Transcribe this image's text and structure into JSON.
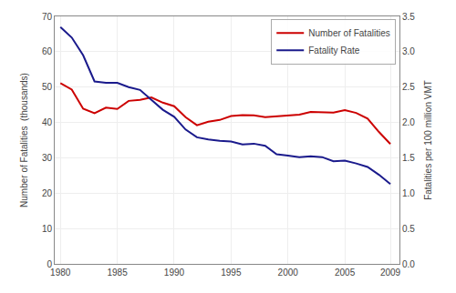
{
  "chart_data": {
    "type": "line",
    "x": [
      1980,
      1981,
      1982,
      1983,
      1984,
      1985,
      1986,
      1987,
      1988,
      1989,
      1990,
      1991,
      1992,
      1993,
      1994,
      1995,
      1996,
      1997,
      1998,
      1999,
      2000,
      2001,
      2002,
      2003,
      2004,
      2005,
      2006,
      2007,
      2008,
      2009
    ],
    "series": [
      {
        "name": "Number of Fatalities",
        "color": "#cc0000",
        "values": [
          51.1,
          49.3,
          43.9,
          42.6,
          44.2,
          43.8,
          46.1,
          46.4,
          47.1,
          45.6,
          44.6,
          41.5,
          39.2,
          40.2,
          40.7,
          41.8,
          42.1,
          42.0,
          41.5,
          41.7,
          41.9,
          42.2,
          43.0,
          42.9,
          42.8,
          43.5,
          42.7,
          41.1,
          37.3,
          33.9
        ]
      },
      {
        "name": "Fatality Rate",
        "color": "#1a1a8c",
        "axis": "y2",
        "values": [
          3.35,
          3.2,
          2.95,
          2.58,
          2.56,
          2.56,
          2.5,
          2.46,
          2.32,
          2.18,
          2.08,
          1.9,
          1.79,
          1.76,
          1.74,
          1.73,
          1.69,
          1.7,
          1.67,
          1.55,
          1.53,
          1.51,
          1.52,
          1.51,
          1.45,
          1.46,
          1.42,
          1.37,
          1.26,
          1.13
        ]
      }
    ],
    "ylabel": "Number of Fatalities  (thousands)",
    "y2label": "Fatalities per 100 million VMT",
    "xlim": [
      1979.5,
      2009.8
    ],
    "xticks": [
      1980,
      1985,
      1990,
      1995,
      2000,
      2005,
      2009
    ],
    "ylim": [
      0,
      70
    ],
    "yticks": [
      0,
      10,
      20,
      30,
      40,
      50,
      60,
      70
    ],
    "y2lim": [
      0.0,
      3.5
    ],
    "y2ticks": [
      {
        "value": 0,
        "label": "0.0"
      },
      0.5,
      {
        "value": 1,
        "label": "1.0"
      },
      1.5,
      {
        "value": 2,
        "label": "2.0"
      },
      2.5,
      {
        "value": 3,
        "label": "3.0"
      },
      3.5
    ],
    "grid": true,
    "legend": "upper right"
  }
}
